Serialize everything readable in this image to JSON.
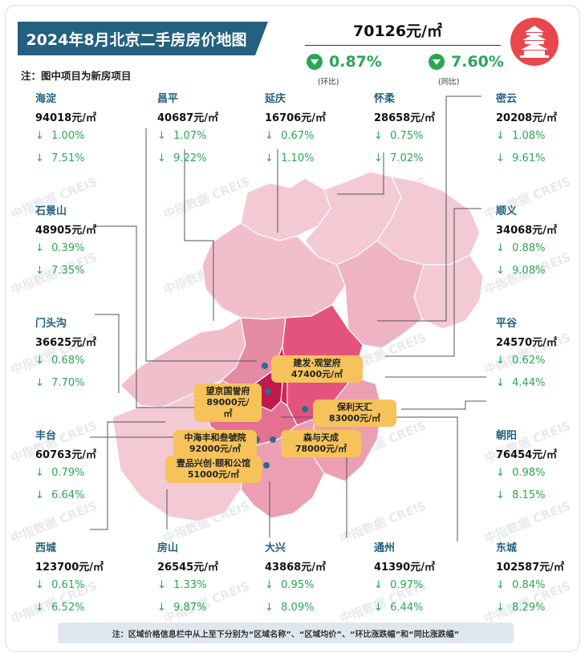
{
  "title": "2024年8月北京二手房房价地图",
  "note_top": "注：图中项目为新房项目",
  "city_avg": {
    "price": "70126元/㎡",
    "mom": "0.87%",
    "mom_label": "(环比)",
    "yoy": "7.60%",
    "yoy_label": "(同比)"
  },
  "districts": [
    {
      "name": "海淀",
      "price": "94018元/㎡",
      "mom": "1.00%",
      "yoy": "7.51%"
    },
    {
      "name": "昌平",
      "price": "40687元/㎡",
      "mom": "1.07%",
      "yoy": "9.22%"
    },
    {
      "name": "延庆",
      "price": "16706元/㎡",
      "mom": "0.67%",
      "yoy": "1.10%"
    },
    {
      "name": "怀柔",
      "price": "28658元/㎡",
      "mom": "0.75%",
      "yoy": "7.02%"
    },
    {
      "name": "密云",
      "price": "20208元/㎡",
      "mom": "1.08%",
      "yoy": "9.61%"
    },
    {
      "name": "石景山",
      "price": "48905元/㎡",
      "mom": "0.39%",
      "yoy": "7.35%"
    },
    {
      "name": "顺义",
      "price": "34068元/㎡",
      "mom": "0.88%",
      "yoy": "9.08%"
    },
    {
      "name": "门头沟",
      "price": "36625元/㎡",
      "mom": "0.68%",
      "yoy": "7.70%"
    },
    {
      "name": "平谷",
      "price": "24570元/㎡",
      "mom": "0.62%",
      "yoy": "4.44%"
    },
    {
      "name": "丰台",
      "price": "60763元/㎡",
      "mom": "0.79%",
      "yoy": "6.64%"
    },
    {
      "name": "朝阳",
      "price": "76454元/㎡",
      "mom": "0.98%",
      "yoy": "8.15%"
    },
    {
      "name": "西城",
      "price": "123700元/㎡",
      "mom": "0.61%",
      "yoy": "6.52%"
    },
    {
      "name": "房山",
      "price": "26545元/㎡",
      "mom": "1.33%",
      "yoy": "9.87%"
    },
    {
      "name": "大兴",
      "price": "43868元/㎡",
      "mom": "0.95%",
      "yoy": "8.09%"
    },
    {
      "name": "通州",
      "price": "41390元/㎡",
      "mom": "0.97%",
      "yoy": "6.44%"
    },
    {
      "name": "东城",
      "price": "102587元/㎡",
      "mom": "0.84%",
      "yoy": "8.29%"
    }
  ],
  "down_arrow": "↓",
  "projects": [
    {
      "name": "建发·观堂府",
      "price": "47400元/㎡"
    },
    {
      "name": "望京国誉府",
      "price": "89000元/㎡"
    },
    {
      "name": "保利天汇",
      "price": "83000元/㎡"
    },
    {
      "name": "中海丰和叁號院",
      "price": "92000元/㎡"
    },
    {
      "name": "森与天成",
      "price": "78000元/㎡"
    },
    {
      "name": "壹品兴创·颐和公馆",
      "price": "51000元/㎡"
    }
  ],
  "watermark": "中指数据 CREIS",
  "footnote": "注：区域价格信息栏中从上至下分别为“区域名称”、“区域均价”、“环比涨跌幅”和“同比涨跌幅”",
  "colors": {
    "accent": "#24607f",
    "down": "#2aa655",
    "label_bg": "#f6c35a",
    "logo": "#e8474d"
  }
}
